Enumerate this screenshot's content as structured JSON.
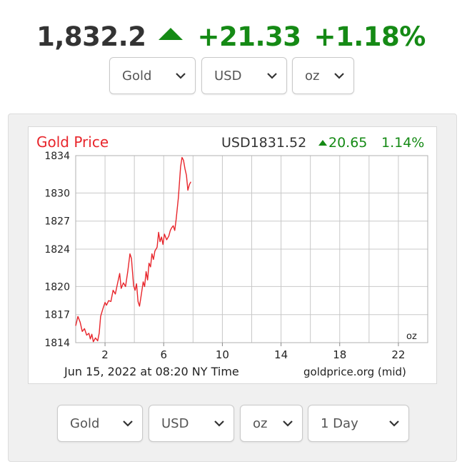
{
  "ticker": {
    "price": "1,832.2",
    "change": "+21.33",
    "percent": "+1.18%",
    "direction_icon": "triangle-up-icon",
    "color_up": "#158A15"
  },
  "top_selectors": [
    {
      "value": "Gold"
    },
    {
      "value": "USD"
    },
    {
      "value": "oz"
    }
  ],
  "bottom_selectors": [
    {
      "value": "Gold"
    },
    {
      "value": "USD"
    },
    {
      "value": "oz"
    },
    {
      "value": "1 Day"
    }
  ],
  "chart_header": {
    "title": "Gold Price",
    "quote": "USD1831.52",
    "change": "20.65",
    "percent": "1.14%",
    "title_color": "#E8252B",
    "up_color": "#158A15"
  },
  "chart_footer": {
    "date_text": "Jun 15, 2022 at 08:20 NY Time",
    "source_text": "goldprice.org (mid)",
    "unit_label": "oz"
  },
  "chart_data": {
    "type": "line",
    "title": "Gold Price",
    "xlabel": "",
    "ylabel": "",
    "x_ticks": [
      "2",
      "6",
      "10",
      "14",
      "18",
      "22"
    ],
    "y_ticks": [
      "1814",
      "1817",
      "1820",
      "1824",
      "1827",
      "1830",
      "1834"
    ],
    "xlim": [
      0,
      24
    ],
    "ylim": [
      1814,
      1834
    ],
    "grid": true,
    "line_color": "#E8252B",
    "series": [
      {
        "values": [
          [
            0.0,
            1815.8
          ],
          [
            0.15,
            1816.8
          ],
          [
            0.3,
            1816.2
          ],
          [
            0.45,
            1815.2
          ],
          [
            0.6,
            1815.5
          ],
          [
            0.75,
            1814.8
          ],
          [
            0.9,
            1815.0
          ],
          [
            1.0,
            1814.4
          ],
          [
            1.1,
            1814.9
          ],
          [
            1.2,
            1814.1
          ],
          [
            1.35,
            1814.5
          ],
          [
            1.5,
            1814.2
          ],
          [
            1.6,
            1815.0
          ],
          [
            1.7,
            1816.8
          ],
          [
            1.85,
            1817.6
          ],
          [
            2.0,
            1818.3
          ],
          [
            2.1,
            1818.0
          ],
          [
            2.25,
            1818.5
          ],
          [
            2.4,
            1818.4
          ],
          [
            2.55,
            1819.6
          ],
          [
            2.7,
            1819.2
          ],
          [
            2.85,
            1820.3
          ],
          [
            3.0,
            1821.4
          ],
          [
            3.1,
            1819.8
          ],
          [
            3.25,
            1820.4
          ],
          [
            3.4,
            1820.0
          ],
          [
            3.55,
            1821.6
          ],
          [
            3.7,
            1823.5
          ],
          [
            3.8,
            1823.0
          ],
          [
            3.85,
            1822.0
          ],
          [
            3.95,
            1820.1
          ],
          [
            4.05,
            1819.6
          ],
          [
            4.15,
            1820.3
          ],
          [
            4.25,
            1818.4
          ],
          [
            4.35,
            1817.9
          ],
          [
            4.5,
            1819.4
          ],
          [
            4.6,
            1820.5
          ],
          [
            4.7,
            1820.0
          ],
          [
            4.8,
            1821.6
          ],
          [
            4.9,
            1820.7
          ],
          [
            5.0,
            1822.5
          ],
          [
            5.1,
            1822.1
          ],
          [
            5.2,
            1823.5
          ],
          [
            5.3,
            1822.9
          ],
          [
            5.4,
            1823.8
          ],
          [
            5.55,
            1824.2
          ],
          [
            5.65,
            1825.8
          ],
          [
            5.75,
            1824.8
          ],
          [
            5.85,
            1825.3
          ],
          [
            5.95,
            1824.5
          ],
          [
            6.05,
            1825.6
          ],
          [
            6.2,
            1825.0
          ],
          [
            6.35,
            1825.4
          ],
          [
            6.45,
            1826.0
          ],
          [
            6.55,
            1826.3
          ],
          [
            6.65,
            1826.5
          ],
          [
            6.75,
            1826.0
          ],
          [
            6.85,
            1827.2
          ],
          [
            7.0,
            1829.5
          ],
          [
            7.15,
            1832.8
          ],
          [
            7.25,
            1833.8
          ],
          [
            7.35,
            1833.5
          ],
          [
            7.45,
            1832.6
          ],
          [
            7.55,
            1831.9
          ],
          [
            7.65,
            1830.3
          ],
          [
            7.75,
            1830.9
          ],
          [
            7.85,
            1831.2
          ]
        ]
      }
    ]
  }
}
